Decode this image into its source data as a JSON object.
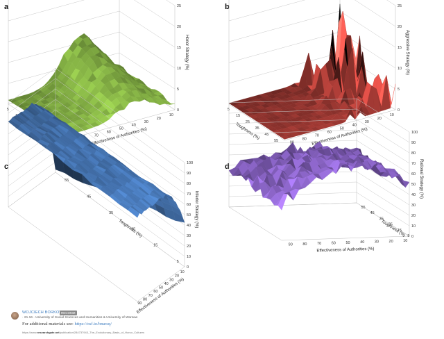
{
  "chart_data": [
    {
      "panel": "a",
      "type": "surface3d",
      "color": "#8fbf4a",
      "zlabel": "Honor Strategy (%)",
      "xlabel": "Effectiveness of Authorities (%)",
      "ylabel": "Toughness (%)",
      "xticks": [
        "90",
        "80",
        "70",
        "60",
        "50",
        "40",
        "30",
        "20",
        "10"
      ],
      "yticks": [
        "5",
        "15",
        "25",
        "35",
        "45",
        "55"
      ],
      "zticks": [
        "0",
        "5",
        "10",
        "15",
        "20",
        "25"
      ],
      "zlim": [
        0,
        25
      ]
    },
    {
      "panel": "b",
      "type": "surface3d",
      "color": "#a33a34",
      "zlabel": "Aggressive Strategy (%)",
      "xlabel": "Effectiveness of Authorities (%)",
      "ylabel": "Toughness (%)",
      "xticks": [
        "90",
        "80",
        "70",
        "60",
        "50",
        "40",
        "30",
        "20",
        "10"
      ],
      "yticks": [
        "5",
        "15",
        "25",
        "35",
        "45",
        "55"
      ],
      "zticks": [
        "0",
        "5",
        "10",
        "15",
        "20",
        "25"
      ],
      "zlim": [
        0,
        25
      ]
    },
    {
      "panel": "c",
      "type": "surface3d",
      "color": "#4f84c9",
      "zlabel": "Inferior Strategy (%)",
      "xlabel": "Effectiveness of Authorities (%)",
      "ylabel": "Toughness (%)",
      "xticks": [
        "90",
        "80",
        "70",
        "60",
        "50",
        "40",
        "30",
        "20",
        "10"
      ],
      "yticks": [
        "5",
        "15",
        "25",
        "35",
        "45",
        "55"
      ],
      "zticks": [
        "0",
        "10",
        "20",
        "30",
        "40",
        "50",
        "60",
        "70",
        "80",
        "90",
        "100"
      ],
      "zlim": [
        0,
        100
      ]
    },
    {
      "panel": "d",
      "type": "surface3d",
      "color": "#8a64c6",
      "zlabel": "Rational Strategy (%)",
      "xlabel": "Effectiveness of Authorities (%)",
      "ylabel": "Toughness (%)",
      "xticks": [
        "90",
        "80",
        "70",
        "60",
        "50",
        "40",
        "30",
        "20",
        "10"
      ],
      "yticks": [
        "5",
        "15",
        "25",
        "35",
        "45",
        "55"
      ],
      "zticks": [
        "0",
        "10",
        "20",
        "30",
        "40",
        "50",
        "60",
        "70",
        "80",
        "90",
        "100"
      ],
      "zlim": [
        0,
        100
      ]
    }
  ],
  "footer": {
    "author": "WOJCIECH BORKOWSKI",
    "badge": "RECOMM",
    "affiliation": "· 21.16 · University of Social Sciences and Humanities & University of Warsaw",
    "additional_prefix": "For additional materials see: ",
    "additional_link": "https://osf.io/bnawq/",
    "source_prefix": "https://www.",
    "source_bold": "researchgate.net",
    "source_suffix": "/publication/284737943_The_Evolutionary_Basis_of_Honor_Cultures"
  }
}
